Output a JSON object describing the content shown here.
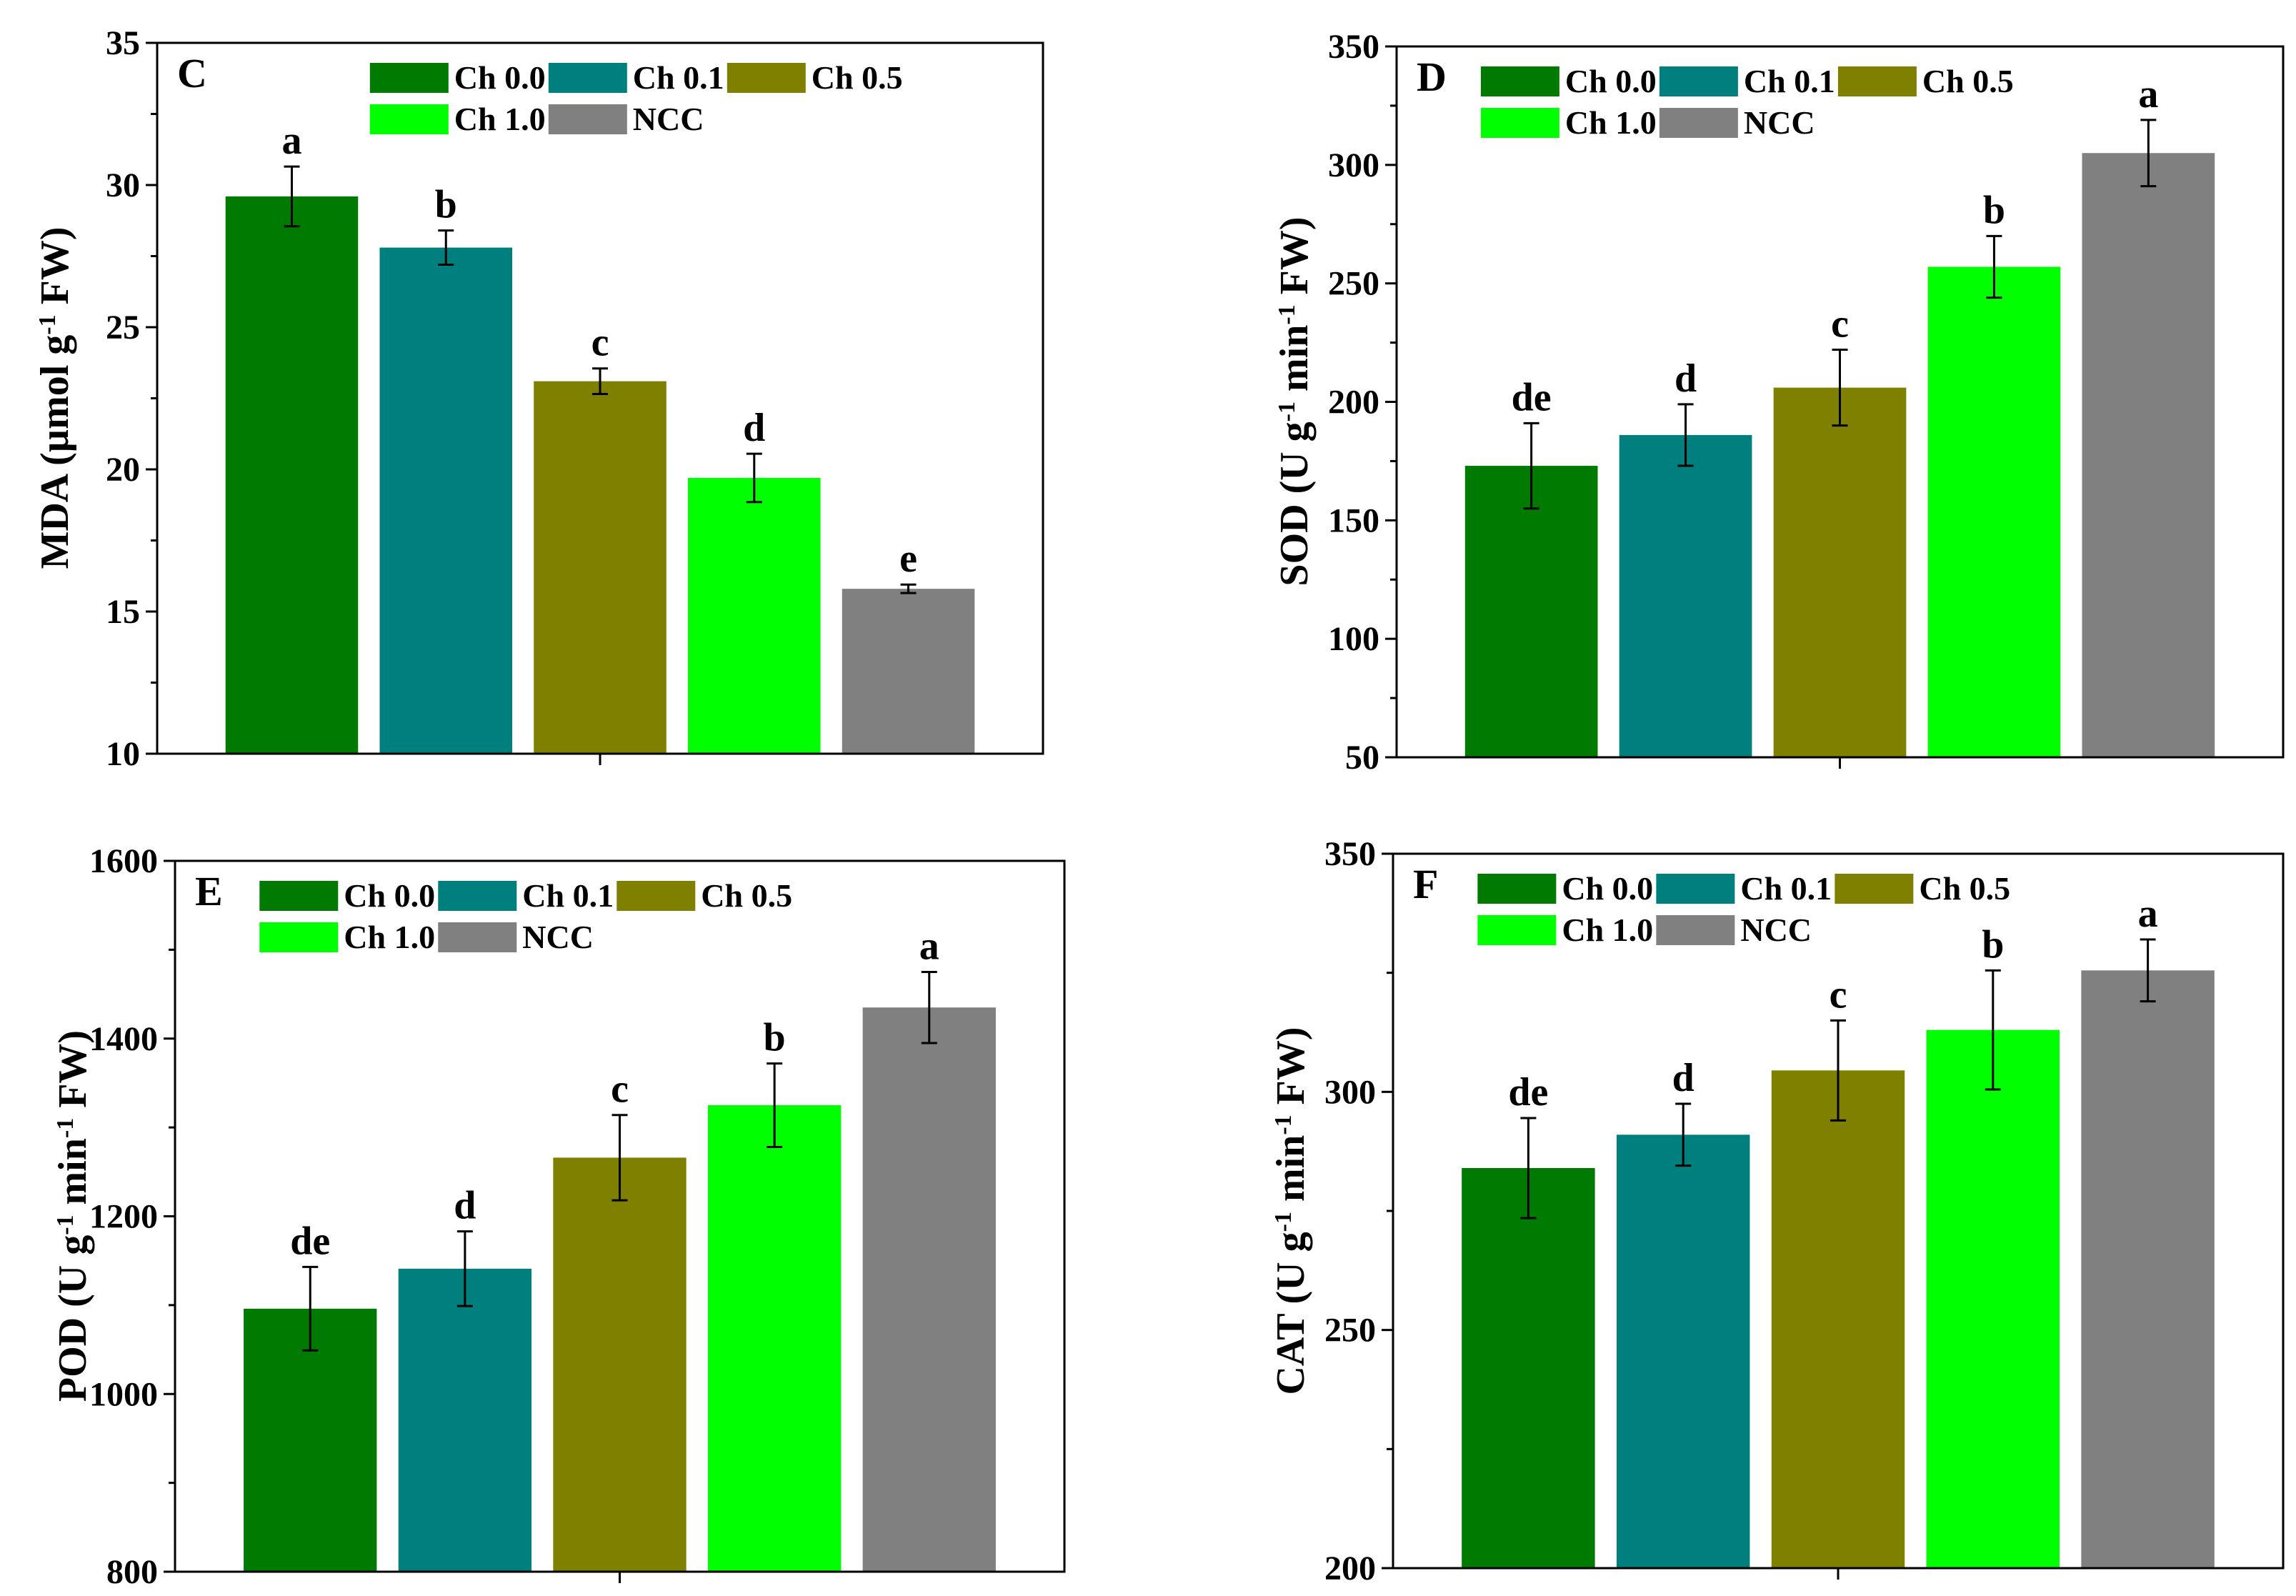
{
  "colors": {
    "Ch 0.0": "#007a00",
    "Ch 0.1": "#007f7f",
    "Ch 0.5": "#7f7f00",
    "Ch 1.0": "#00ff00",
    "NCC": "#808080"
  },
  "chart_data": [
    {
      "type": "bar",
      "panel": "C",
      "ylabel_main": "MDA (µmol g",
      "ylabel_sup": "-1",
      "ylabel_tail": " FW)",
      "ylim": [
        10,
        35
      ],
      "yticks": [
        "10",
        "15",
        "20",
        "25",
        "30",
        "35"
      ],
      "ytick_values": [
        10,
        15,
        20,
        25,
        30,
        35
      ],
      "minor_step": 2.5,
      "categories": [
        "Ch 0.0",
        "Ch 0.1",
        "Ch 0.5",
        "Ch 1.0",
        "NCC"
      ],
      "values": [
        29.6,
        27.8,
        23.1,
        19.7,
        15.8
      ],
      "errors": [
        1.05,
        0.6,
        0.45,
        0.85,
        0.15
      ],
      "letters": [
        "a",
        "b",
        "c",
        "d",
        "e"
      ]
    },
    {
      "type": "bar",
      "panel": "D",
      "ylabel_main": "SOD (U g",
      "ylabel_sup": "-1",
      "ylabel_mid": " min",
      "ylabel_sup2": "-1",
      "ylabel_tail": " FW)",
      "ylim": [
        50,
        350
      ],
      "yticks": [
        "50",
        "100",
        "150",
        "200",
        "250",
        "300",
        "350"
      ],
      "ytick_values": [
        50,
        100,
        150,
        200,
        250,
        300,
        350
      ],
      "minor_step": 25,
      "categories": [
        "Ch 0.0",
        "Ch 0.1",
        "Ch 0.5",
        "Ch 1.0",
        "NCC"
      ],
      "values": [
        173,
        186,
        206,
        257,
        305
      ],
      "errors": [
        18,
        13,
        16,
        13,
        14
      ],
      "letters": [
        "de",
        "d",
        "c",
        "b",
        "a"
      ]
    },
    {
      "type": "bar",
      "panel": "E",
      "ylabel_main": "POD (U g",
      "ylabel_sup": "-1",
      "ylabel_mid": " min",
      "ylabel_sup2": "-1",
      "ylabel_tail": " FW)",
      "ylim": [
        800,
        1600
      ],
      "yticks": [
        "800",
        "1000",
        "1200",
        "1400",
        "1600"
      ],
      "ytick_values": [
        800,
        1000,
        1200,
        1400,
        1600
      ],
      "minor_step": 100,
      "categories": [
        "Ch 0.0",
        "Ch 0.1",
        "Ch 0.5",
        "Ch 1.0",
        "NCC"
      ],
      "values": [
        1096,
        1141,
        1266,
        1325,
        1435
      ],
      "errors": [
        47,
        42,
        48,
        47,
        40
      ],
      "letters": [
        "de",
        "d",
        "c",
        "b",
        "a"
      ]
    },
    {
      "type": "bar",
      "panel": "F",
      "ylabel_main": "CAT (U g",
      "ylabel_sup": "-1",
      "ylabel_mid": " min",
      "ylabel_sup2": "-1",
      "ylabel_tail": " FW)",
      "ylim": [
        200,
        350
      ],
      "yticks": [
        "200",
        "250",
        "300",
        "350"
      ],
      "ytick_values": [
        200,
        250,
        300,
        350
      ],
      "minor_step": 25,
      "categories": [
        "Ch 0.0",
        "Ch 0.1",
        "Ch 0.5",
        "Ch 1.0",
        "NCC"
      ],
      "values": [
        284,
        291,
        304.5,
        313,
        325.5
      ],
      "errors": [
        10.5,
        6.5,
        10.5,
        12.5,
        6.5
      ],
      "letters": [
        "de",
        "d",
        "c",
        "b",
        "a"
      ]
    }
  ]
}
